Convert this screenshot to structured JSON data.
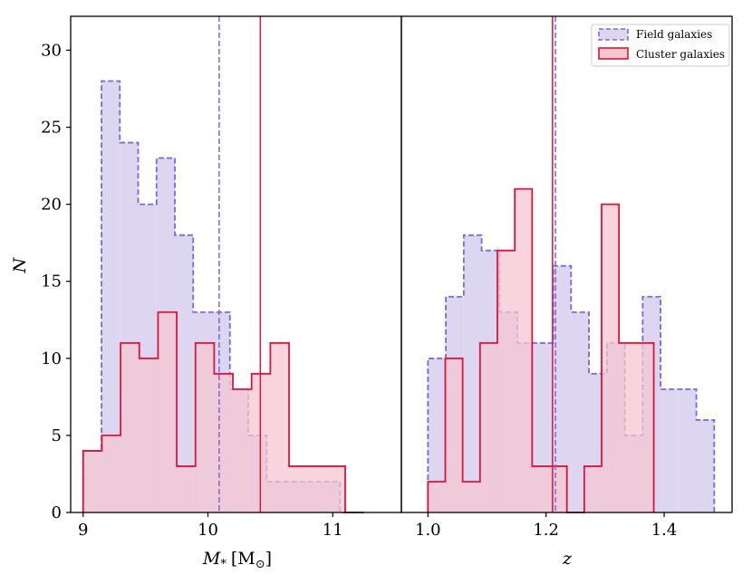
{
  "chart_data": [
    {
      "type": "histogram",
      "panel": "left",
      "xlabel": "M* [M⊙]",
      "xlabel_main": "M",
      "xlabel_sub": "*",
      "xlabel_unit": "[M",
      "xlabel_unit_sub": "⊙",
      "xlabel_close": "]",
      "ylabel": "N",
      "xlim": [
        8.9,
        11.55
      ],
      "ylim": [
        0,
        32.2
      ],
      "xticks": [
        9,
        10,
        11
      ],
      "xtick_labels": [
        "9",
        "10",
        "11"
      ],
      "yticks": [
        0,
        5,
        10,
        15,
        20,
        25,
        30
      ],
      "ytick_labels": [
        "0",
        "5",
        "10",
        "15",
        "20",
        "25",
        "30"
      ],
      "series": [
        {
          "name": "Field galaxies",
          "edges": [
            9.0,
            9.147,
            9.294,
            9.441,
            9.588,
            9.735,
            9.882,
            10.029,
            10.176,
            10.323,
            10.47,
            10.617,
            10.764,
            10.911,
            11.058,
            11.205
          ],
          "values": [
            4,
            28,
            24,
            20,
            23,
            18,
            13,
            13,
            8,
            5,
            2,
            2,
            2,
            2,
            0
          ],
          "color": "#7B68D9",
          "fill": "#DCD6F0",
          "style": "dashed"
        },
        {
          "name": "Cluster galaxies",
          "edges": [
            9.0,
            9.15,
            9.3,
            9.45,
            9.6,
            9.75,
            9.9,
            10.05,
            10.2,
            10.35,
            10.5,
            10.65,
            10.8,
            10.95,
            11.1,
            11.25
          ],
          "values": [
            4,
            5,
            11,
            10,
            13,
            3,
            11,
            9,
            8,
            9,
            11,
            3,
            3,
            3,
            0
          ],
          "color": "#DC143C",
          "fill": "#F5C6D0",
          "style": "solid"
        }
      ],
      "vlines": [
        {
          "x": 10.09,
          "color": "#7B68D9",
          "style": "dashed"
        },
        {
          "x": 10.42,
          "color": "#DC143C",
          "style": "solid"
        }
      ]
    },
    {
      "type": "histogram",
      "panel": "right",
      "xlabel": "z",
      "xlim": [
        0.955,
        1.515
      ],
      "ylim": [
        0,
        32.2
      ],
      "xticks": [
        1.0,
        1.2,
        1.4
      ],
      "xtick_labels": [
        "1.0",
        "1.2",
        "1.4"
      ],
      "series": [
        {
          "name": "Field galaxies",
          "edges": [
            1.0,
            1.0303,
            1.0606,
            1.0909,
            1.1212,
            1.1515,
            1.1818,
            1.2121,
            1.2424,
            1.2727,
            1.303,
            1.3333,
            1.3636,
            1.3939,
            1.4242,
            1.4545,
            1.4848
          ],
          "values": [
            10,
            14,
            18,
            17,
            13,
            11,
            11,
            16,
            13,
            9,
            11,
            5,
            14,
            8,
            8,
            6
          ],
          "color": "#7B68D9",
          "fill": "#DCD6F0",
          "style": "dashed"
        },
        {
          "name": "Cluster galaxies",
          "edges": [
            1.0,
            1.0294,
            1.0588,
            1.0882,
            1.1176,
            1.1471,
            1.1765,
            1.2059,
            1.2353,
            1.2647,
            1.2941,
            1.3235,
            1.3529,
            1.3824
          ],
          "values": [
            2,
            10,
            2,
            11,
            17,
            21,
            3,
            3,
            0,
            3,
            20,
            11,
            11
          ],
          "color": "#DC143C",
          "fill": "#F5C6D0",
          "style": "solid"
        }
      ],
      "vlines": [
        {
          "x": 1.216,
          "color": "#7B68D9",
          "style": "dashed"
        },
        {
          "x": 1.211,
          "color": "#DC143C",
          "style": "solid"
        }
      ]
    }
  ],
  "legend": {
    "items": [
      {
        "label": "Field galaxies",
        "color": "#7B68D9",
        "fill": "#DCD6F0",
        "style": "dashed"
      },
      {
        "label": "Cluster galaxies",
        "color": "#DC143C",
        "fill": "#F5C6D0",
        "style": "solid"
      }
    ]
  }
}
